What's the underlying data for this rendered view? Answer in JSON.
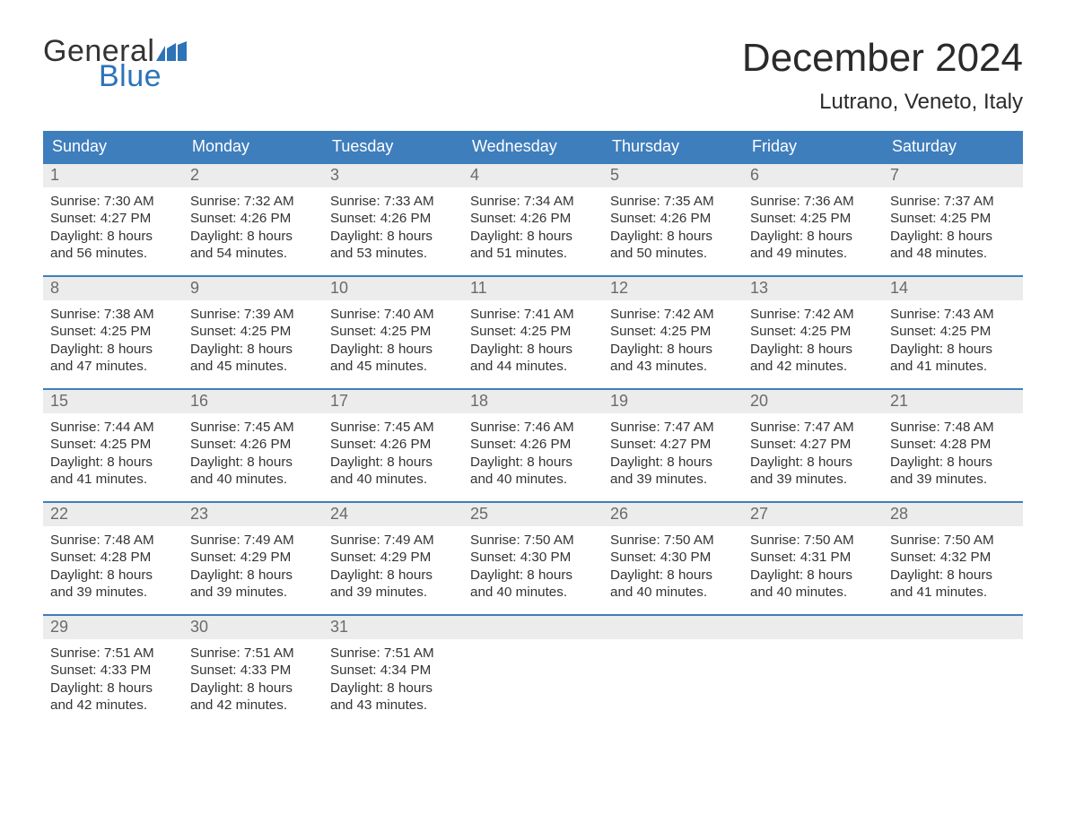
{
  "logo": {
    "general": "General",
    "blue": "Blue",
    "flag_color": "#2d73b8"
  },
  "title": "December 2024",
  "location": "Lutrano, Veneto, Italy",
  "colors": {
    "header_bg": "#3f7ebc",
    "header_text": "#ffffff",
    "week_border": "#3f7ebc",
    "daynum_bg": "#ececec",
    "daynum_text": "#6b6b6b",
    "body_text": "#333333",
    "page_bg": "#ffffff",
    "logo_blue": "#2d73b8"
  },
  "day_names": [
    "Sunday",
    "Monday",
    "Tuesday",
    "Wednesday",
    "Thursday",
    "Friday",
    "Saturday"
  ],
  "weeks": [
    [
      {
        "num": "1",
        "sunrise": "Sunrise: 7:30 AM",
        "sunset": "Sunset: 4:27 PM",
        "d1": "Daylight: 8 hours",
        "d2": "and 56 minutes."
      },
      {
        "num": "2",
        "sunrise": "Sunrise: 7:32 AM",
        "sunset": "Sunset: 4:26 PM",
        "d1": "Daylight: 8 hours",
        "d2": "and 54 minutes."
      },
      {
        "num": "3",
        "sunrise": "Sunrise: 7:33 AM",
        "sunset": "Sunset: 4:26 PM",
        "d1": "Daylight: 8 hours",
        "d2": "and 53 minutes."
      },
      {
        "num": "4",
        "sunrise": "Sunrise: 7:34 AM",
        "sunset": "Sunset: 4:26 PM",
        "d1": "Daylight: 8 hours",
        "d2": "and 51 minutes."
      },
      {
        "num": "5",
        "sunrise": "Sunrise: 7:35 AM",
        "sunset": "Sunset: 4:26 PM",
        "d1": "Daylight: 8 hours",
        "d2": "and 50 minutes."
      },
      {
        "num": "6",
        "sunrise": "Sunrise: 7:36 AM",
        "sunset": "Sunset: 4:25 PM",
        "d1": "Daylight: 8 hours",
        "d2": "and 49 minutes."
      },
      {
        "num": "7",
        "sunrise": "Sunrise: 7:37 AM",
        "sunset": "Sunset: 4:25 PM",
        "d1": "Daylight: 8 hours",
        "d2": "and 48 minutes."
      }
    ],
    [
      {
        "num": "8",
        "sunrise": "Sunrise: 7:38 AM",
        "sunset": "Sunset: 4:25 PM",
        "d1": "Daylight: 8 hours",
        "d2": "and 47 minutes."
      },
      {
        "num": "9",
        "sunrise": "Sunrise: 7:39 AM",
        "sunset": "Sunset: 4:25 PM",
        "d1": "Daylight: 8 hours",
        "d2": "and 45 minutes."
      },
      {
        "num": "10",
        "sunrise": "Sunrise: 7:40 AM",
        "sunset": "Sunset: 4:25 PM",
        "d1": "Daylight: 8 hours",
        "d2": "and 45 minutes."
      },
      {
        "num": "11",
        "sunrise": "Sunrise: 7:41 AM",
        "sunset": "Sunset: 4:25 PM",
        "d1": "Daylight: 8 hours",
        "d2": "and 44 minutes."
      },
      {
        "num": "12",
        "sunrise": "Sunrise: 7:42 AM",
        "sunset": "Sunset: 4:25 PM",
        "d1": "Daylight: 8 hours",
        "d2": "and 43 minutes."
      },
      {
        "num": "13",
        "sunrise": "Sunrise: 7:42 AM",
        "sunset": "Sunset: 4:25 PM",
        "d1": "Daylight: 8 hours",
        "d2": "and 42 minutes."
      },
      {
        "num": "14",
        "sunrise": "Sunrise: 7:43 AM",
        "sunset": "Sunset: 4:25 PM",
        "d1": "Daylight: 8 hours",
        "d2": "and 41 minutes."
      }
    ],
    [
      {
        "num": "15",
        "sunrise": "Sunrise: 7:44 AM",
        "sunset": "Sunset: 4:25 PM",
        "d1": "Daylight: 8 hours",
        "d2": "and 41 minutes."
      },
      {
        "num": "16",
        "sunrise": "Sunrise: 7:45 AM",
        "sunset": "Sunset: 4:26 PM",
        "d1": "Daylight: 8 hours",
        "d2": "and 40 minutes."
      },
      {
        "num": "17",
        "sunrise": "Sunrise: 7:45 AM",
        "sunset": "Sunset: 4:26 PM",
        "d1": "Daylight: 8 hours",
        "d2": "and 40 minutes."
      },
      {
        "num": "18",
        "sunrise": "Sunrise: 7:46 AM",
        "sunset": "Sunset: 4:26 PM",
        "d1": "Daylight: 8 hours",
        "d2": "and 40 minutes."
      },
      {
        "num": "19",
        "sunrise": "Sunrise: 7:47 AM",
        "sunset": "Sunset: 4:27 PM",
        "d1": "Daylight: 8 hours",
        "d2": "and 39 minutes."
      },
      {
        "num": "20",
        "sunrise": "Sunrise: 7:47 AM",
        "sunset": "Sunset: 4:27 PM",
        "d1": "Daylight: 8 hours",
        "d2": "and 39 minutes."
      },
      {
        "num": "21",
        "sunrise": "Sunrise: 7:48 AM",
        "sunset": "Sunset: 4:28 PM",
        "d1": "Daylight: 8 hours",
        "d2": "and 39 minutes."
      }
    ],
    [
      {
        "num": "22",
        "sunrise": "Sunrise: 7:48 AM",
        "sunset": "Sunset: 4:28 PM",
        "d1": "Daylight: 8 hours",
        "d2": "and 39 minutes."
      },
      {
        "num": "23",
        "sunrise": "Sunrise: 7:49 AM",
        "sunset": "Sunset: 4:29 PM",
        "d1": "Daylight: 8 hours",
        "d2": "and 39 minutes."
      },
      {
        "num": "24",
        "sunrise": "Sunrise: 7:49 AM",
        "sunset": "Sunset: 4:29 PM",
        "d1": "Daylight: 8 hours",
        "d2": "and 39 minutes."
      },
      {
        "num": "25",
        "sunrise": "Sunrise: 7:50 AM",
        "sunset": "Sunset: 4:30 PM",
        "d1": "Daylight: 8 hours",
        "d2": "and 40 minutes."
      },
      {
        "num": "26",
        "sunrise": "Sunrise: 7:50 AM",
        "sunset": "Sunset: 4:30 PM",
        "d1": "Daylight: 8 hours",
        "d2": "and 40 minutes."
      },
      {
        "num": "27",
        "sunrise": "Sunrise: 7:50 AM",
        "sunset": "Sunset: 4:31 PM",
        "d1": "Daylight: 8 hours",
        "d2": "and 40 minutes."
      },
      {
        "num": "28",
        "sunrise": "Sunrise: 7:50 AM",
        "sunset": "Sunset: 4:32 PM",
        "d1": "Daylight: 8 hours",
        "d2": "and 41 minutes."
      }
    ],
    [
      {
        "num": "29",
        "sunrise": "Sunrise: 7:51 AM",
        "sunset": "Sunset: 4:33 PM",
        "d1": "Daylight: 8 hours",
        "d2": "and 42 minutes."
      },
      {
        "num": "30",
        "sunrise": "Sunrise: 7:51 AM",
        "sunset": "Sunset: 4:33 PM",
        "d1": "Daylight: 8 hours",
        "d2": "and 42 minutes."
      },
      {
        "num": "31",
        "sunrise": "Sunrise: 7:51 AM",
        "sunset": "Sunset: 4:34 PM",
        "d1": "Daylight: 8 hours",
        "d2": "and 43 minutes."
      },
      null,
      null,
      null,
      null
    ]
  ]
}
